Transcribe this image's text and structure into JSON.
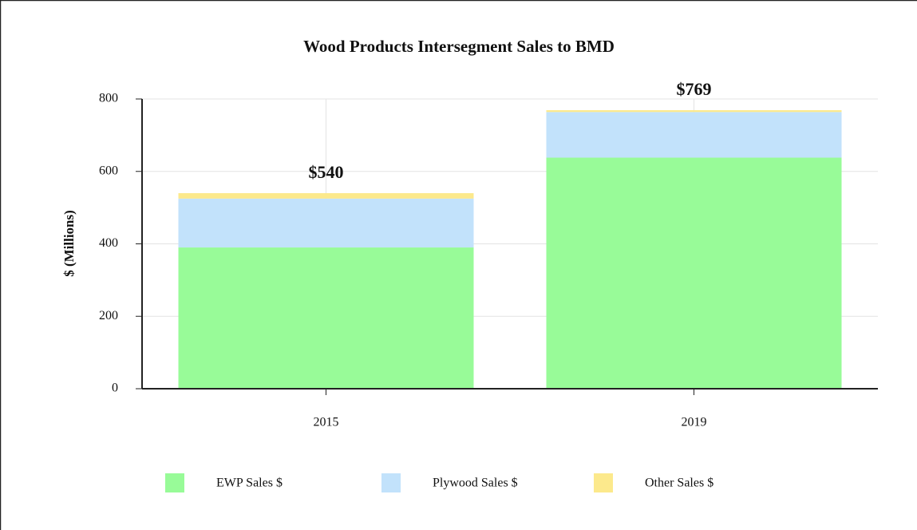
{
  "chart_data": {
    "type": "stacked_bar",
    "title": "Wood Products Intersegment Sales to BMD",
    "y_label": "$ (Millions)",
    "categories": [
      "2015",
      "2019"
    ],
    "series": [
      {
        "name": "EWP Sales $",
        "color": "#98fb98",
        "values": [
          390,
          638
        ]
      },
      {
        "name": "Plywood Sales $",
        "color": "#c2e2fb",
        "values": [
          135,
          126
        ]
      },
      {
        "name": "Other Sales $",
        "color": "#fce98c",
        "values": [
          15,
          5
        ]
      }
    ],
    "totals": [
      540,
      769
    ],
    "total_labels": [
      "$540",
      "$769"
    ],
    "ylim": [
      0,
      800
    ],
    "yticks": [
      0,
      200,
      400,
      600,
      800
    ],
    "grid": true
  }
}
